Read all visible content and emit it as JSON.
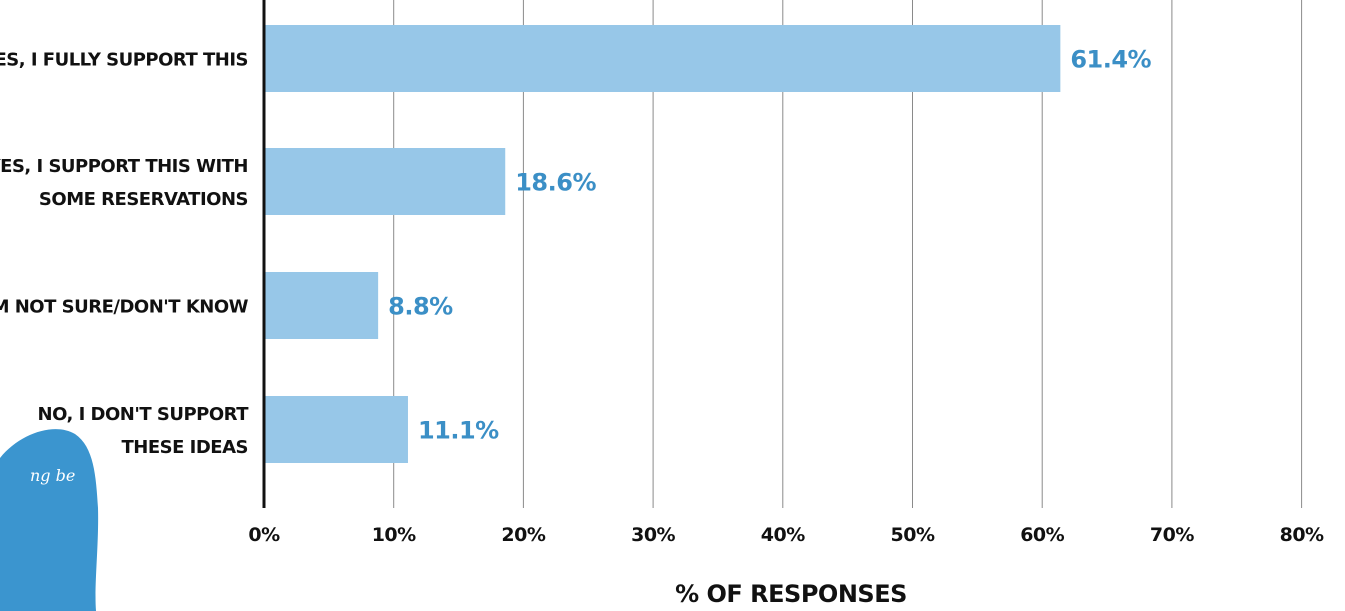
{
  "chart_data": {
    "type": "bar",
    "orientation": "horizontal",
    "categories": [
      [
        "YES, I FULLY SUPPORT THIS"
      ],
      [
        "YES, I SUPPORT THIS WITH",
        "SOME RESERVATIONS"
      ],
      [
        "I'M NOT SURE/DON'T KNOW"
      ],
      [
        "NO, I DON'T SUPPORT",
        "THESE IDEAS"
      ]
    ],
    "values": [
      61.4,
      18.6,
      8.8,
      11.1
    ],
    "value_labels": [
      "61.4%",
      "18.6%",
      "8.8%",
      "11.1%"
    ],
    "xlabel": "% OF RESPONSES",
    "xlim": [
      0,
      80
    ],
    "xticks": [
      0,
      10,
      20,
      30,
      40,
      50,
      60,
      70,
      80
    ],
    "xtick_labels": [
      "0%",
      "10%",
      "20%",
      "30%",
      "40%",
      "50%",
      "60%",
      "70%",
      "80%"
    ],
    "grid": "vertical",
    "colors": {
      "bar": "#97c7e8",
      "value_label": "#3b8fc6",
      "gridline": "#8a8a8a",
      "axis": "#111111"
    }
  },
  "overlay": {
    "partial_text": "ng be",
    "color": "#3b95cf"
  }
}
